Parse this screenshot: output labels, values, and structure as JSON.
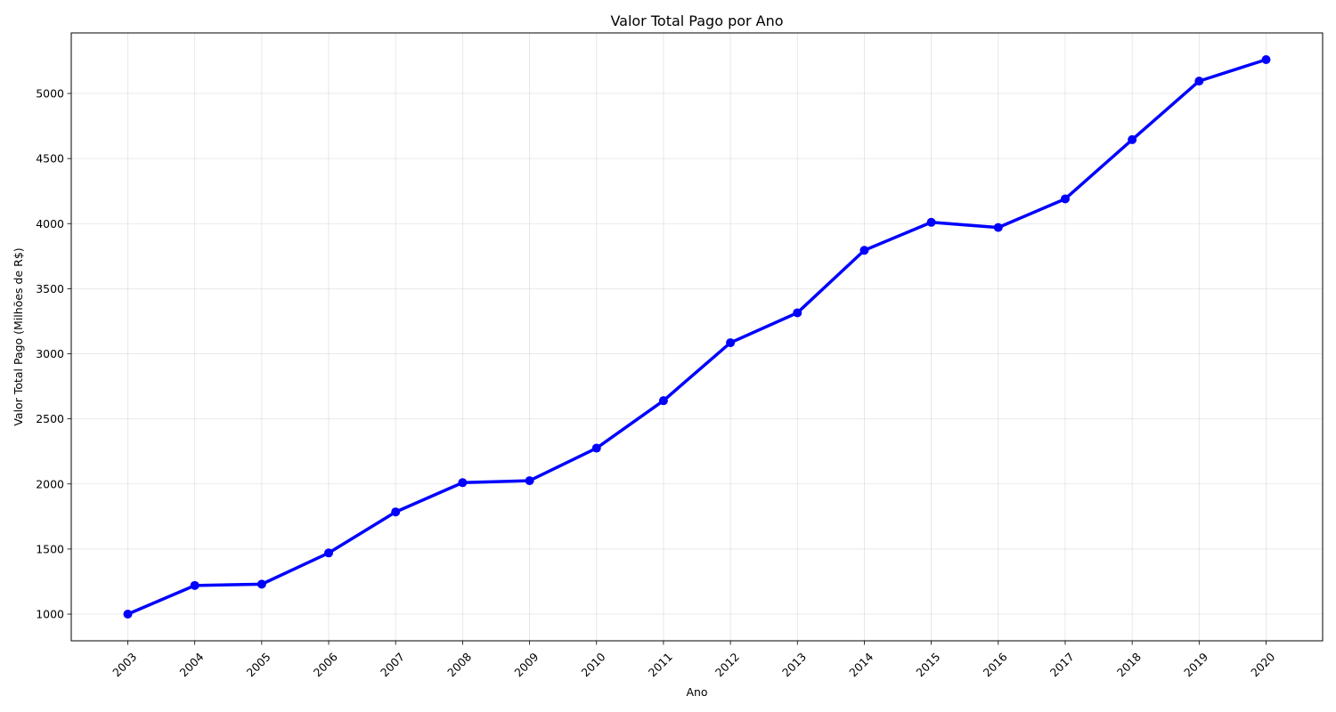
{
  "colors": {
    "line": "#0000ff",
    "marker": "#0000ff"
  },
  "chart_data": {
    "type": "line",
    "title": "Valor Total Pago por Ano",
    "xlabel": "Ano",
    "ylabel": "Valor Total Pago (Milhões de R$)",
    "categories": [
      "2003",
      "2004",
      "2005",
      "2006",
      "2007",
      "2008",
      "2009",
      "2010",
      "2011",
      "2012",
      "2013",
      "2014",
      "2015",
      "2016",
      "2017",
      "2018",
      "2019",
      "2020"
    ],
    "values": [
      1000,
      1220,
      1230,
      1470,
      1785,
      2010,
      2025,
      2275,
      2640,
      3085,
      3315,
      3795,
      4010,
      3970,
      4190,
      4645,
      5095,
      5260
    ],
    "yticks": [
      1000,
      1500,
      2000,
      2500,
      3000,
      3500,
      4000,
      4500,
      5000
    ],
    "ylim": [
      795,
      5465
    ],
    "grid": true,
    "markers": true,
    "x_tick_rotation": "45deg"
  }
}
